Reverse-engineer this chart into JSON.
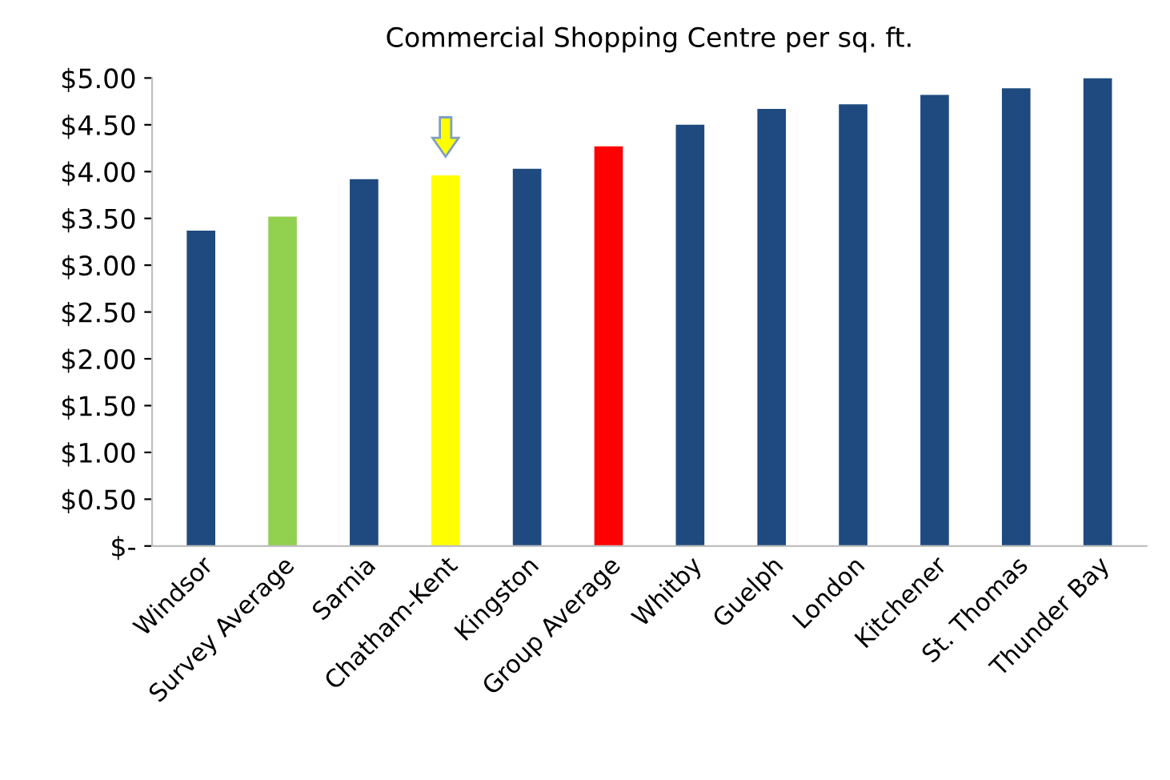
{
  "chart_data": {
    "type": "bar",
    "title": "Commercial Shopping Centre per sq. ft.",
    "categories": [
      "Windsor",
      "Survey Average",
      "Sarnia",
      "Chatham-Kent",
      "Kingston",
      "Group Average",
      "Whitby",
      "Guelph",
      "London",
      "Kitchener",
      "St. Thomas",
      "Thunder Bay"
    ],
    "values": [
      3.37,
      3.52,
      3.92,
      3.96,
      4.03,
      4.27,
      4.5,
      4.67,
      4.72,
      4.82,
      4.89,
      5.0
    ],
    "colors": [
      "#1f4a7f",
      "#92d050",
      "#1f4a7f",
      "#ffff00",
      "#1f4a7f",
      "#ff0000",
      "#1f4a7f",
      "#1f4a7f",
      "#1f4a7f",
      "#1f4a7f",
      "#1f4a7f",
      "#1f4a7f"
    ],
    "ylim": [
      0,
      5
    ],
    "yticks": [
      {
        "value": 0,
        "label": "$-"
      },
      {
        "value": 0.5,
        "label": "$0.50"
      },
      {
        "value": 1,
        "label": "$1.00"
      },
      {
        "value": 1.5,
        "label": "$1.50"
      },
      {
        "value": 2,
        "label": "$2.00"
      },
      {
        "value": 2.5,
        "label": "$2.50"
      },
      {
        "value": 3,
        "label": "$3.00"
      },
      {
        "value": 3.5,
        "label": "$3.50"
      },
      {
        "value": 4,
        "label": "$4.00"
      },
      {
        "value": 4.5,
        "label": "$4.50"
      },
      {
        "value": 5,
        "label": "$5.00"
      }
    ],
    "grid": false,
    "legend": false
  }
}
